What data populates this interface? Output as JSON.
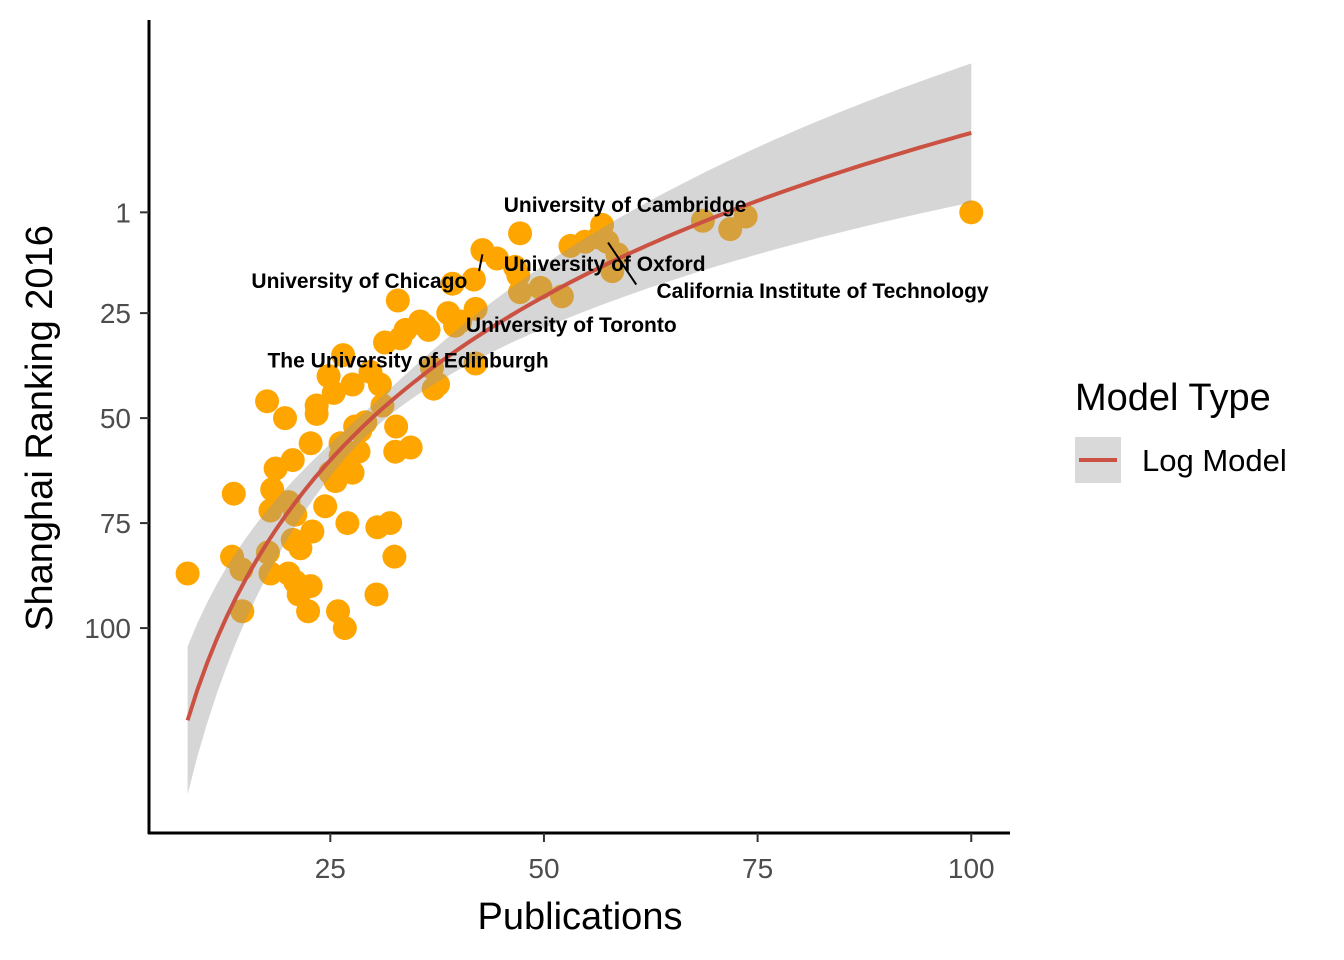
{
  "chart_data": {
    "type": "scatter",
    "xlabel": "Publications",
    "ylabel": "Shanghai Ranking 2016",
    "xlim": [
      3.9,
      104.3
    ],
    "ylim": [
      148.8,
      -44.8
    ],
    "y_reversed": true,
    "xticks": [
      25,
      50,
      75,
      100
    ],
    "yticks": [
      1,
      25,
      50,
      75,
      100
    ],
    "grid": false,
    "point_color": "#FFA500",
    "points": [
      [
        8.3,
        87
      ],
      [
        13.7,
        68
      ],
      [
        13.5,
        83
      ],
      [
        14.6,
        86
      ],
      [
        14.7,
        96
      ],
      [
        17.6,
        46
      ],
      [
        19.7,
        50
      ],
      [
        18.6,
        62
      ],
      [
        18.2,
        67
      ],
      [
        18.0,
        72
      ],
      [
        17.7,
        82
      ],
      [
        18.0,
        87
      ],
      [
        20.6,
        60
      ],
      [
        20.1,
        70
      ],
      [
        20.9,
        73
      ],
      [
        20.6,
        79
      ],
      [
        21.5,
        81
      ],
      [
        20.1,
        87
      ],
      [
        20.9,
        89
      ],
      [
        21.3,
        92
      ],
      [
        22.7,
        90
      ],
      [
        22.4,
        96
      ],
      [
        22.9,
        77
      ],
      [
        22.7,
        56
      ],
      [
        23.4,
        49
      ],
      [
        23.4,
        47
      ],
      [
        24.4,
        71
      ],
      [
        24.8,
        40
      ],
      [
        25.4,
        44
      ],
      [
        25.0,
        63
      ],
      [
        25.6,
        65
      ],
      [
        26.2,
        59
      ],
      [
        26.5,
        35
      ],
      [
        26.2,
        56
      ],
      [
        25.9,
        96
      ],
      [
        26.7,
        100
      ],
      [
        27.0,
        75
      ],
      [
        27.6,
        42
      ],
      [
        27.6,
        63
      ],
      [
        27.9,
        52
      ],
      [
        28.3,
        58
      ],
      [
        28.5,
        53
      ],
      [
        29.1,
        51
      ],
      [
        29.7,
        39
      ],
      [
        30.5,
        76
      ],
      [
        30.4,
        92
      ],
      [
        30.8,
        42
      ],
      [
        31.1,
        47
      ],
      [
        31.4,
        32
      ],
      [
        32.0,
        75
      ],
      [
        32.5,
        83
      ],
      [
        32.9,
        22
      ],
      [
        32.7,
        52
      ],
      [
        32.6,
        58
      ],
      [
        33.2,
        31
      ],
      [
        33.8,
        29
      ],
      [
        34.4,
        57
      ],
      [
        35.5,
        27
      ],
      [
        36.1,
        28
      ],
      [
        36.5,
        29
      ],
      [
        36.9,
        38
      ],
      [
        37.1,
        43
      ],
      [
        37.6,
        42
      ],
      [
        38.8,
        25
      ],
      [
        39.3,
        18
      ],
      [
        39.6,
        28
      ],
      [
        40.2,
        27
      ],
      [
        42.0,
        24
      ],
      [
        41.8,
        17
      ],
      [
        42.0,
        37
      ],
      [
        42.8,
        10
      ],
      [
        44.5,
        12
      ],
      [
        46.6,
        14
      ],
      [
        47.0,
        16
      ],
      [
        47.2,
        6
      ],
      [
        47.2,
        20
      ],
      [
        49.6,
        19
      ],
      [
        52.1,
        21
      ],
      [
        53.1,
        9
      ],
      [
        54.8,
        8
      ],
      [
        56.4,
        7
      ],
      [
        56.8,
        4
      ],
      [
        57.4,
        8
      ],
      [
        58.6,
        11
      ],
      [
        58.0,
        15
      ],
      [
        68.6,
        3
      ],
      [
        71.8,
        5
      ],
      [
        73.6,
        2
      ],
      [
        100,
        1
      ]
    ],
    "model": {
      "name": "Log Model",
      "formula": "rank ~ log(publications)",
      "intercept": 240.9,
      "slope": -56.2,
      "se_base": 3.0,
      "se_slope": 13.5,
      "se_center_log": 3.4,
      "x_range": [
        8.3,
        100
      ],
      "line_color": "#CB5142",
      "ribbon_color": "#999999"
    },
    "annotations": [
      {
        "text": "University of Cambridge",
        "x": 59.5,
        "y": -0.7
      },
      {
        "text": "University of Oxford",
        "x": 57.1,
        "y": 13.3
      },
      {
        "text": "California Institute of Technology",
        "x": 82.6,
        "y": 19.7,
        "segment": [
          [
            57.5,
            8.2
          ],
          [
            60.8,
            18.2
          ]
        ]
      },
      {
        "text": "University of Chicago",
        "x": 28.4,
        "y": 17.4,
        "segment": [
          [
            42.8,
            11
          ],
          [
            42.4,
            15
          ]
        ]
      },
      {
        "text": "University of Toronto",
        "x": 53.2,
        "y": 27.8
      },
      {
        "text": "The University of Edinburgh",
        "x": 34.1,
        "y": 36.3
      }
    ],
    "legend": {
      "title": "Model Type",
      "entries": [
        "Log Model"
      ],
      "placement": "right"
    }
  }
}
